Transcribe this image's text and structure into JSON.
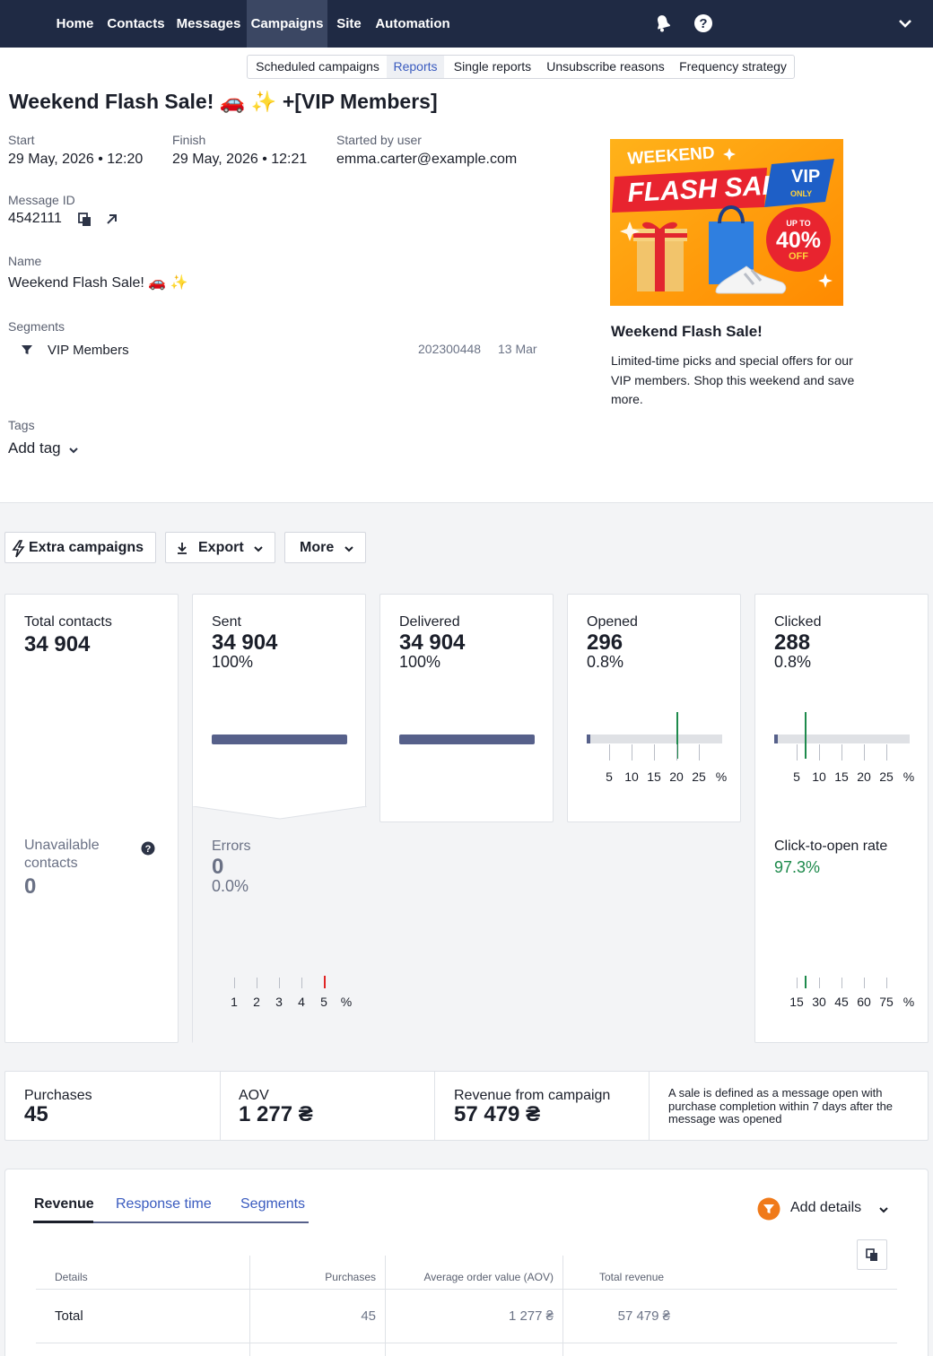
{
  "nav": {
    "items": [
      "Home",
      "Contacts",
      "Messages",
      "Campaigns",
      "Site",
      "Automation"
    ],
    "active_index": 3
  },
  "subnav": {
    "items": [
      "Scheduled campaigns",
      "Reports",
      "Single reports",
      "Unsubscribe reasons",
      "Frequency strategy"
    ],
    "active_index": 1
  },
  "campaign": {
    "title": "Weekend Flash Sale! 🚗 ✨ +[VIP Members]",
    "start_label": "Start",
    "start_value": "29 May, 2026 • 12:20",
    "finish_label": "Finish",
    "finish_value": "29 May, 2026 • 12:21",
    "user_label": "Started by user",
    "user_value": "emma.carter@example.com",
    "message_id_label": "Message ID",
    "message_id_value": "4542111",
    "name_label": "Name",
    "name_value": "Weekend Flash Sale! 🚗 ✨",
    "segments_label": "Segments",
    "segment_name": "VIP Members",
    "segment_id": "202300448",
    "segment_date": "13 Mar",
    "tags_label": "Tags",
    "add_tag": "Add tag"
  },
  "preview": {
    "banner_weekend": "WEEKEND",
    "banner_flash": "FLASH SALE!",
    "banner_vip": "VIP",
    "banner_only": "ONLY",
    "banner_upto": "UP TO",
    "banner_pct": "40%",
    "banner_off": "OFF",
    "heading": "Weekend Flash Sale!",
    "text": "Limited-time picks and special offers for our VIP members. Shop this weekend and save more."
  },
  "toolbar": {
    "extra": "Extra campaigns",
    "export": "Export",
    "more": "More"
  },
  "stats": {
    "total_label": "Total contacts",
    "total_value": "34 904",
    "unavail_label": "Unavailable contacts",
    "unavail_value": "0",
    "sent_label": "Sent",
    "sent_value": "34 904",
    "sent_pct": "100%",
    "sent_fraction": 1.0,
    "errors_label": "Errors",
    "errors_value": "0",
    "errors_pct": "0.0%",
    "delivered_label": "Delivered",
    "delivered_value": "34 904",
    "delivered_pct": "100%",
    "delivered_fraction": 1.0,
    "opened_label": "Opened",
    "opened_value": "296",
    "opened_pct": "0.8%",
    "clicked_label": "Clicked",
    "clicked_value": "288",
    "clicked_pct": "0.8%",
    "cto_label": "Click-to-open rate",
    "cto_value": "97.3%",
    "scale_5": [
      "5",
      "10",
      "15",
      "20",
      "25",
      "%"
    ],
    "scale_1": [
      "1",
      "2",
      "3",
      "4",
      "5",
      "%"
    ],
    "scale_15": [
      "15",
      "30",
      "45",
      "60",
      "75",
      "%"
    ]
  },
  "sales": {
    "purchases_label": "Purchases",
    "purchases_value": "45",
    "aov_label": "AOV",
    "aov_value": "1 277 ₴",
    "revenue_label": "Revenue from campaign",
    "revenue_value": "57 479 ₴",
    "note": "A sale is defined as a message open with purchase completion within 7 days after the message was opened"
  },
  "report": {
    "tabs": [
      "Revenue",
      "Response time",
      "Segments"
    ],
    "active_tab": 0,
    "add_details": "Add details",
    "columns": [
      "Details",
      "Purchases",
      "Average order value (AOV)",
      "Total revenue"
    ],
    "row": [
      "Total",
      "45",
      "1 277 ₴",
      "57 479 ₴"
    ]
  },
  "colors": {
    "nav_bg": "#1f2a44",
    "accent": "#3a5bbf",
    "green": "#1e8a4c",
    "red": "#e02424",
    "bar": "#56608a",
    "orange": "#f07a1a"
  }
}
